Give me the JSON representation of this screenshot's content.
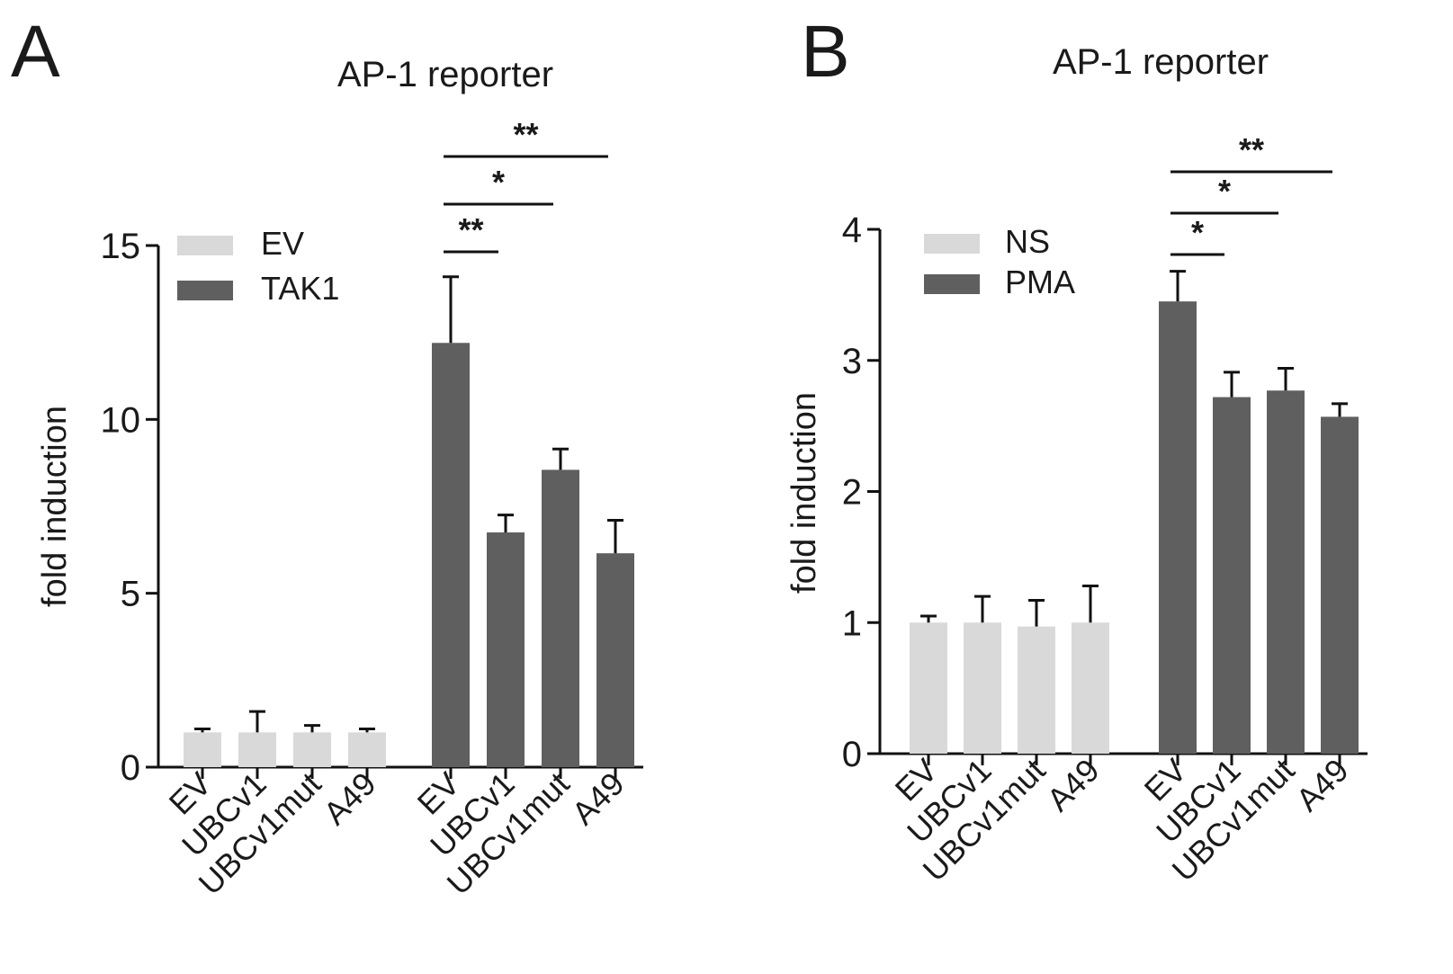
{
  "chart_data": [
    {
      "type": "bar",
      "panel_label": "A",
      "title": "AP-1 reporter",
      "xlabel": "",
      "ylabel": "fold induction",
      "ylim": [
        0,
        15
      ],
      "yticks": [
        "0",
        "5",
        "10",
        "15"
      ],
      "ytick_values": [
        0,
        5,
        10,
        15
      ],
      "categories": [
        "EV",
        "UBCv1",
        "UBCv1mut",
        "A49"
      ],
      "series": [
        {
          "name": "EV",
          "color": "#d9d9d9",
          "values": [
            1.0,
            1.0,
            1.0,
            1.0
          ],
          "errors": [
            0.1,
            0.6,
            0.2,
            0.1
          ]
        },
        {
          "name": "TAK1",
          "color": "#5f5f5f",
          "values": [
            12.2,
            6.75,
            8.55,
            6.15
          ],
          "errors": [
            1.9,
            0.5,
            0.6,
            0.95
          ]
        }
      ],
      "legend_position": "top-left",
      "significance": [
        {
          "from_series": 1,
          "from": 0,
          "to": 1,
          "label": "**"
        },
        {
          "from_series": 1,
          "from": 0,
          "to": 2,
          "label": "*"
        },
        {
          "from_series": 1,
          "from": 0,
          "to": 3,
          "label": "**"
        }
      ]
    },
    {
      "type": "bar",
      "panel_label": "B",
      "title": "AP-1 reporter",
      "xlabel": "",
      "ylabel": "fold induction",
      "ylim": [
        0,
        4
      ],
      "yticks": [
        "0",
        "1",
        "2",
        "3",
        "4"
      ],
      "ytick_values": [
        0,
        1,
        2,
        3,
        4
      ],
      "categories": [
        "EV",
        "UBCv1",
        "UBCv1mut",
        "A49"
      ],
      "series": [
        {
          "name": "NS",
          "color": "#d9d9d9",
          "values": [
            1.0,
            1.0,
            0.97,
            1.0
          ],
          "errors": [
            0.05,
            0.2,
            0.2,
            0.28
          ]
        },
        {
          "name": "PMA",
          "color": "#5f5f5f",
          "values": [
            3.45,
            2.72,
            2.77,
            2.57
          ],
          "errors": [
            0.23,
            0.19,
            0.17,
            0.1
          ]
        }
      ],
      "legend_position": "top-left",
      "significance": [
        {
          "from_series": 1,
          "from": 0,
          "to": 1,
          "label": "*"
        },
        {
          "from_series": 1,
          "from": 0,
          "to": 2,
          "label": "*"
        },
        {
          "from_series": 1,
          "from": 0,
          "to": 3,
          "label": "**"
        }
      ]
    }
  ]
}
